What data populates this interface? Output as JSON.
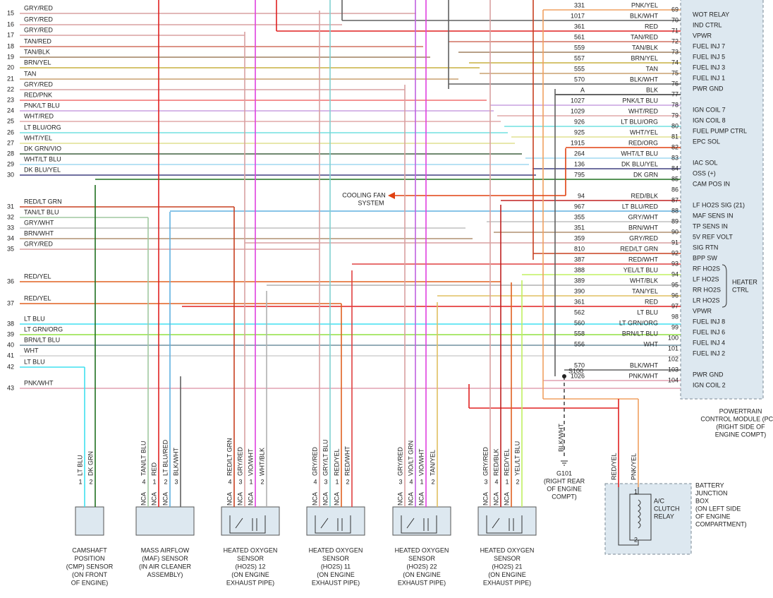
{
  "left_rows": [
    {
      "num": "15",
      "label": "GRY/RED",
      "stroke": "#d8a0a0"
    },
    {
      "num": "16",
      "label": "GRY/RED",
      "stroke": "#d8a0a0"
    },
    {
      "num": "17",
      "label": "GRY/RED",
      "stroke": "#d8a0a0"
    },
    {
      "num": "18",
      "label": "TAN/RED",
      "stroke": "#d07060"
    },
    {
      "num": "19",
      "label": "TAN/BLK",
      "stroke": "#a08060"
    },
    {
      "num": "20",
      "label": "BRN/YEL",
      "stroke": "#c8b040"
    },
    {
      "num": "21",
      "label": "TAN",
      "stroke": "#c8a070"
    },
    {
      "num": "22",
      "label": "GRY/RED",
      "stroke": "#d8a0a0"
    },
    {
      "num": "23",
      "label": "RED/PNK",
      "stroke": "#f07070"
    },
    {
      "num": "24",
      "label": "PNK/LT BLU",
      "stroke": "#c8a0e0"
    },
    {
      "num": "25",
      "label": "WHT/RED",
      "stroke": "#e0a8a8"
    },
    {
      "num": "26",
      "label": "LT BLU/ORG",
      "stroke": "#70e0e0"
    },
    {
      "num": "27",
      "label": "WHT/YEL",
      "stroke": "#e0e090"
    },
    {
      "num": "28",
      "label": "DK GRN/VIO",
      "stroke": "#406040"
    },
    {
      "num": "29",
      "label": "WHT/LT BLU",
      "stroke": "#a0d8f0"
    },
    {
      "num": "30",
      "label": "DK BLU/YEL",
      "stroke": "#404080"
    },
    {
      "num": "31",
      "label": "RED/LT GRN",
      "stroke": "#c84020"
    },
    {
      "num": "32",
      "label": "TAN/LT BLU",
      "stroke": "#a0c8a0"
    },
    {
      "num": "33",
      "label": "GRY/WHT",
      "stroke": "#c0c0c0"
    },
    {
      "num": "34",
      "label": "BRN/WHT",
      "stroke": "#b09070"
    },
    {
      "num": "35",
      "label": "GRY/RED",
      "stroke": "#d8a0a0"
    },
    {
      "num": "36",
      "label": "RED/YEL",
      "stroke": "#e06020"
    },
    {
      "num": "37",
      "label": "RED/YEL",
      "stroke": "#e06020"
    },
    {
      "num": "38",
      "label": "LT BLU",
      "stroke": "#40e0f0"
    },
    {
      "num": "39",
      "label": "LT GRN/ORG",
      "stroke": "#90e040"
    },
    {
      "num": "40",
      "label": "BRN/LT BLU",
      "stroke": "#7090a0"
    },
    {
      "num": "41",
      "label": "WHT",
      "stroke": "#d0d0d0"
    },
    {
      "num": "42",
      "label": "LT BLU",
      "stroke": "#40e0f0"
    },
    {
      "num": "43",
      "label": "PNK/WHT",
      "stroke": "#e0a0b0"
    }
  ],
  "pcm_rows": [
    {
      "circuit": "331",
      "color": "PNK/YEL",
      "pin": "69",
      "function": "WOT RELAY",
      "stroke": "#f0a060"
    },
    {
      "circuit": "1017",
      "color": "BLK/WHT",
      "pin": "70",
      "function": "IND CTRL",
      "stroke": "#606060"
    },
    {
      "circuit": "361",
      "color": "RED",
      "pin": "71",
      "function": "VPWR",
      "stroke": "#e02020"
    },
    {
      "circuit": "561",
      "color": "TAN/RED",
      "pin": "72",
      "function": "FUEL INJ 7",
      "stroke": "#d07060"
    },
    {
      "circuit": "559",
      "color": "TAN/BLK",
      "pin": "73",
      "function": "FUEL INJ 5",
      "stroke": "#a08060"
    },
    {
      "circuit": "557",
      "color": "BRN/YEL",
      "pin": "74",
      "function": "FUEL INJ 3",
      "stroke": "#c8b040"
    },
    {
      "circuit": "555",
      "color": "TAN",
      "pin": "75",
      "function": "FUEL INJ 1",
      "stroke": "#c8a070"
    },
    {
      "circuit": "570",
      "color": "BLK/WHT",
      "pin": "76",
      "function": "PWR GND",
      "stroke": "#606060"
    },
    {
      "circuit": "A",
      "color": "BLK",
      "pin": "77",
      "stroke": "#303030"
    },
    {
      "circuit": "1027",
      "color": "PNK/LT BLU",
      "pin": "78",
      "function": "IGN COIL 7",
      "stroke": "#c8a0e0"
    },
    {
      "circuit": "1029",
      "color": "WHT/RED",
      "pin": "79",
      "function": "IGN COIL 8",
      "stroke": "#e0a8a8"
    },
    {
      "circuit": "926",
      "color": "LT BLU/ORG",
      "pin": "80",
      "function": "FUEL PUMP CTRL",
      "stroke": "#70e0e0"
    },
    {
      "circuit": "925",
      "color": "WHT/YEL",
      "pin": "81",
      "function": "EPC SOL",
      "stroke": "#e0e090"
    },
    {
      "circuit": "1915",
      "color": "RED/ORG",
      "pin": "82",
      "stroke": "#e04010"
    },
    {
      "circuit": "264",
      "color": "WHT/LT BLU",
      "pin": "83",
      "function": "IAC SOL",
      "stroke": "#a0d8f0"
    },
    {
      "circuit": "136",
      "color": "DK BLU/YEL",
      "pin": "84",
      "function": "OSS (+)",
      "stroke": "#404080"
    },
    {
      "circuit": "795",
      "color": "DK GRN",
      "pin": "85",
      "function": "CAM POS IN",
      "stroke": "#207020"
    },
    {
      "pin": "86"
    },
    {
      "circuit": "94",
      "color": "RED/BLK",
      "pin": "87",
      "function": "LF HO2S SIG (21)",
      "stroke": "#c02020"
    },
    {
      "circuit": "967",
      "color": "LT BLU/RED",
      "pin": "88",
      "function": "MAF SENS IN",
      "stroke": "#60b0e0"
    },
    {
      "circuit": "355",
      "color": "GRY/WHT",
      "pin": "89",
      "function": "TP SENS IN",
      "stroke": "#c0c0c0"
    },
    {
      "circuit": "351",
      "color": "BRN/WHT",
      "pin": "90",
      "function": "5V REF VOLT",
      "stroke": "#b09070"
    },
    {
      "circuit": "359",
      "color": "GRY/RED",
      "pin": "91",
      "function": "SIG RTN",
      "stroke": "#d8a0a0"
    },
    {
      "circuit": "810",
      "color": "RED/LT GRN",
      "pin": "92",
      "function": "BPP SW",
      "stroke": "#c84020"
    },
    {
      "circuit": "387",
      "color": "RED/WHT",
      "pin": "93",
      "function": "RF HO2S",
      "stroke": "#e04040"
    },
    {
      "circuit": "388",
      "color": "YEL/LT BLU",
      "pin": "94",
      "function": "LF HO2S",
      "stroke": "#c0f060"
    },
    {
      "circuit": "389",
      "color": "WHT/BLK",
      "pin": "95",
      "function": "RR HO2S",
      "stroke": "#b0b0b0"
    },
    {
      "circuit": "390",
      "color": "TAN/YEL",
      "pin": "96",
      "function": "LR HO2S",
      "stroke": "#e0c060"
    },
    {
      "circuit": "361",
      "color": "RED",
      "pin": "97",
      "function": "VPWR",
      "stroke": "#e02020"
    },
    {
      "circuit": "562",
      "color": "LT BLU",
      "pin": "98",
      "function": "FUEL INJ 8",
      "stroke": "#40e0f0"
    },
    {
      "circuit": "560",
      "color": "LT GRN/ORG",
      "pin": "99",
      "function": "FUEL INJ 6",
      "stroke": "#90e040"
    },
    {
      "circuit": "558",
      "color": "BRN/LT BLU",
      "pin": "100",
      "function": "FUEL INJ 4",
      "stroke": "#7090a0"
    },
    {
      "circuit": "556",
      "color": "WHT",
      "pin": "101",
      "function": "FUEL INJ 2",
      "stroke": "#d0d0d0"
    },
    {
      "pin": "102"
    },
    {
      "circuit": "570",
      "color": "BLK/WHT",
      "pin": "103",
      "function": "PWR GND",
      "stroke": "#606060"
    },
    {
      "circuit": "1026",
      "color": "PNK/WHT",
      "pin": "104",
      "function": "IGN COIL 2",
      "stroke": "#e0a0b0"
    }
  ],
  "heater_ctrl": [
    "HEATER",
    "CTRL"
  ],
  "cooling_fan": [
    "COOLING FAN",
    "SYSTEM"
  ],
  "splice": "S100",
  "ground": {
    "wire": "BLK/WHT",
    "label": [
      "G101",
      "(RIGHT REAR",
      "OF ENGINE",
      "COMPT)"
    ]
  },
  "pcm_label": [
    "POWERTRAIN",
    "CONTROL MODULE (PCM)",
    "(RIGHT SIDE OF",
    "ENGINE COMPT)"
  ],
  "components": [
    {
      "name": [
        "CAMSHAFT",
        "POSITION",
        "(CMP) SENSOR",
        "(ON FRONT",
        "OF ENGINE)"
      ],
      "pins": [
        {
          "num": "1",
          "wire": "LT BLU",
          "stroke": "#40e0f0"
        },
        {
          "num": "2",
          "wire": "DK GRN",
          "stroke": "#207020"
        }
      ]
    },
    {
      "name": [
        "MASS AIRFLOW",
        "(MAF) SENSOR",
        "(IN AIR CLEANER",
        "ASSEMBLY)"
      ],
      "pins": [
        {
          "num": "4",
          "wire": "TAN/LT BLU",
          "nca": "NCA",
          "stroke": "#a0c8a0"
        },
        {
          "num": "1",
          "wire": "RED",
          "nca": "NCA",
          "stroke": "#e02020"
        },
        {
          "num": "2",
          "wire": "LT BLU/RED",
          "nca": "NCA",
          "stroke": "#60b0e0"
        },
        {
          "num": "3",
          "wire": "BLK/WHT",
          "stroke": "#606060"
        }
      ]
    },
    {
      "name": [
        "HEATED OXYGEN",
        "SENSOR",
        "(HO2S) 12",
        "(ON ENGINE",
        "EXHAUST PIPE)"
      ],
      "pins": [
        {
          "num": "4",
          "wire": "RED/LT GRN",
          "nca": "NCA",
          "stroke": "#c84020"
        },
        {
          "num": "3",
          "wire": "GRY/RED",
          "nca": "NCA",
          "stroke": "#d8a0a0"
        },
        {
          "num": "1",
          "wire": "VIO/WHT",
          "nca": "NCA",
          "stroke": "#e040e0"
        },
        {
          "num": "2",
          "wire": "WHT/BLK",
          "stroke": "#b0b0b0"
        }
      ]
    },
    {
      "name": [
        "HEATED OXYGEN",
        "SENSOR",
        "(HO2S) 11",
        "(ON ENGINE",
        "EXHAUST PIPE)"
      ],
      "pins": [
        {
          "num": "4",
          "wire": "GRY/RED",
          "nca": "NCA",
          "stroke": "#d8a0a0"
        },
        {
          "num": "3",
          "wire": "GRY/LT BLU",
          "nca": "NCA",
          "stroke": "#80d0d0"
        },
        {
          "num": "1",
          "wire": "RED/YEL",
          "nca": "NCA",
          "stroke": "#e06020"
        },
        {
          "num": "2",
          "wire": "RED/WHT",
          "stroke": "#e04040"
        }
      ]
    },
    {
      "name": [
        "HEATED OXYGEN",
        "SENSOR",
        "(HO2S) 22",
        "(ON ENGINE",
        "EXHAUST PIPE)"
      ],
      "pins": [
        {
          "num": "3",
          "wire": "GRY/RED",
          "nca": "NCA",
          "stroke": "#d8a0a0"
        },
        {
          "num": "4",
          "wire": "VIO/LT GRN",
          "nca": "NCA",
          "stroke": "#c060e0"
        },
        {
          "num": "1",
          "wire": "VIO/WHT",
          "nca": "NCA",
          "stroke": "#e040e0"
        },
        {
          "num": "2",
          "wire": "TAN/YEL",
          "stroke": "#e0c060"
        }
      ]
    },
    {
      "name": [
        "HEATED OXYGEN",
        "SENSOR",
        "(HO2S) 21",
        "(ON ENGINE",
        "EXHAUST PIPE)"
      ],
      "pins": [
        {
          "num": "3",
          "wire": "GRY/RED",
          "nca": "NCA",
          "stroke": "#d8a0a0"
        },
        {
          "num": "4",
          "wire": "RED/BLK",
          "nca": "NCA",
          "stroke": "#c02020"
        },
        {
          "num": "1",
          "wire": "RED/YEL",
          "nca": "NCA",
          "stroke": "#e06020"
        },
        {
          "num": "2",
          "wire": "YEL/LT BLU",
          "stroke": "#c0f060"
        }
      ]
    }
  ],
  "junction_box": {
    "label": [
      "BATTERY",
      "JUNCTION",
      "BOX",
      "(ON LEFT SIDE",
      "OF ENGINE",
      "COMPARTMENT)"
    ],
    "relay": [
      "A/C",
      "CLUTCH",
      "RELAY"
    ],
    "wires": [
      {
        "text": "RED/YEL",
        "stroke": "#e02020"
      },
      {
        "text": "PNK/YEL",
        "stroke": "#f0a060"
      }
    ],
    "pins": [
      "1",
      "2"
    ]
  }
}
